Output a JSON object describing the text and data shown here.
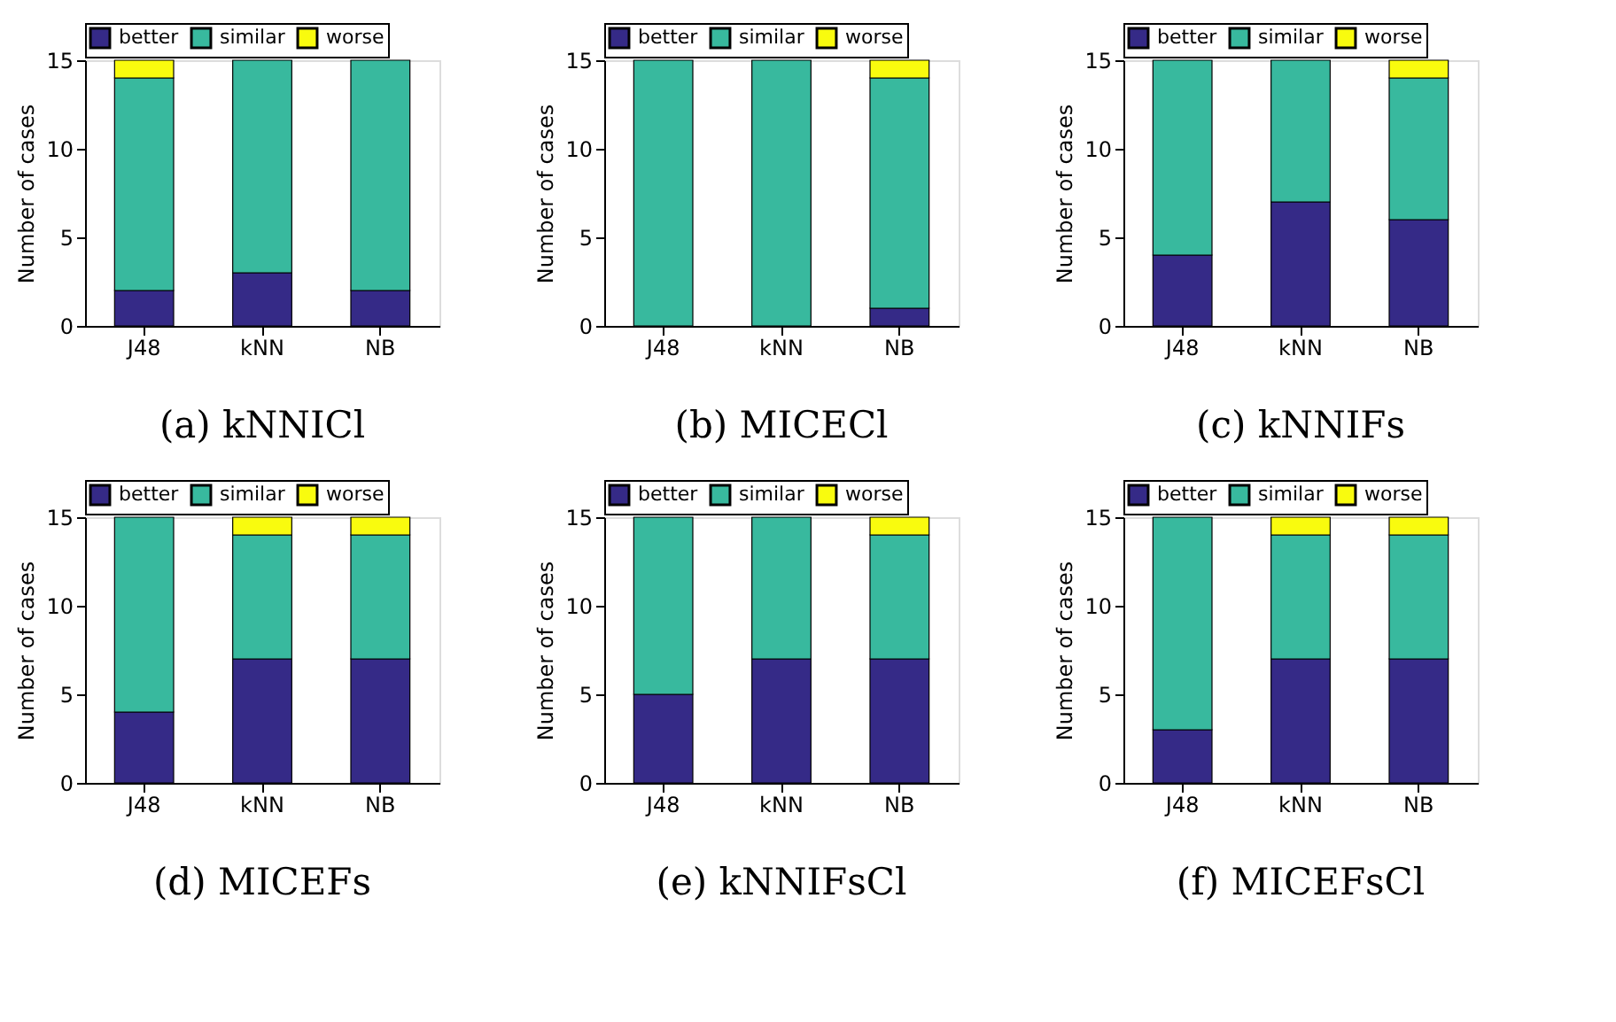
{
  "chart_data": [
    {
      "type": "bar",
      "title": "(a) kNNICl",
      "ylabel": "Number of cases",
      "categories": [
        "J48",
        "kNN",
        "NB"
      ],
      "stacked": true,
      "ylim": [
        0,
        15
      ],
      "yticks": [
        0,
        5,
        10,
        15
      ],
      "grid": false,
      "legend": "top",
      "series": [
        {
          "name": "better",
          "color": "#352a87",
          "values": [
            2,
            3,
            2
          ]
        },
        {
          "name": "similar",
          "color": "#38b99e",
          "values": [
            12,
            12,
            13
          ]
        },
        {
          "name": "worse",
          "color": "#f9fb0e",
          "values": [
            1,
            0,
            0
          ]
        }
      ]
    },
    {
      "type": "bar",
      "title": "(b) MICECl",
      "ylabel": "Number of cases",
      "categories": [
        "J48",
        "kNN",
        "NB"
      ],
      "stacked": true,
      "ylim": [
        0,
        15
      ],
      "yticks": [
        0,
        5,
        10,
        15
      ],
      "grid": false,
      "legend": "top",
      "series": [
        {
          "name": "better",
          "color": "#352a87",
          "values": [
            0,
            0,
            1
          ]
        },
        {
          "name": "similar",
          "color": "#38b99e",
          "values": [
            15,
            15,
            13
          ]
        },
        {
          "name": "worse",
          "color": "#f9fb0e",
          "values": [
            0,
            0,
            1
          ]
        }
      ]
    },
    {
      "type": "bar",
      "title": "(c) kNNIFs",
      "ylabel": "Number of cases",
      "categories": [
        "J48",
        "kNN",
        "NB"
      ],
      "stacked": true,
      "ylim": [
        0,
        15
      ],
      "yticks": [
        0,
        5,
        10,
        15
      ],
      "grid": false,
      "legend": "top",
      "series": [
        {
          "name": "better",
          "color": "#352a87",
          "values": [
            4,
            7,
            6
          ]
        },
        {
          "name": "similar",
          "color": "#38b99e",
          "values": [
            11,
            8,
            8
          ]
        },
        {
          "name": "worse",
          "color": "#f9fb0e",
          "values": [
            0,
            0,
            1
          ]
        }
      ]
    },
    {
      "type": "bar",
      "title": "(d) MICEFs",
      "ylabel": "Number of cases",
      "categories": [
        "J48",
        "kNN",
        "NB"
      ],
      "stacked": true,
      "ylim": [
        0,
        15
      ],
      "yticks": [
        0,
        5,
        10,
        15
      ],
      "grid": false,
      "legend": "top",
      "series": [
        {
          "name": "better",
          "color": "#352a87",
          "values": [
            4,
            7,
            7
          ]
        },
        {
          "name": "similar",
          "color": "#38b99e",
          "values": [
            11,
            7,
            7
          ]
        },
        {
          "name": "worse",
          "color": "#f9fb0e",
          "values": [
            0,
            1,
            1
          ]
        }
      ]
    },
    {
      "type": "bar",
      "title": "(e) kNNIFsCl",
      "ylabel": "Number of cases",
      "categories": [
        "J48",
        "kNN",
        "NB"
      ],
      "stacked": true,
      "ylim": [
        0,
        15
      ],
      "yticks": [
        0,
        5,
        10,
        15
      ],
      "grid": false,
      "legend": "top",
      "series": [
        {
          "name": "better",
          "color": "#352a87",
          "values": [
            5,
            7,
            7
          ]
        },
        {
          "name": "similar",
          "color": "#38b99e",
          "values": [
            10,
            8,
            7
          ]
        },
        {
          "name": "worse",
          "color": "#f9fb0e",
          "values": [
            0,
            0,
            1
          ]
        }
      ]
    },
    {
      "type": "bar",
      "title": "(f) MICEFsCl",
      "ylabel": "Number of cases",
      "categories": [
        "J48",
        "kNN",
        "NB"
      ],
      "stacked": true,
      "ylim": [
        0,
        15
      ],
      "yticks": [
        0,
        5,
        10,
        15
      ],
      "grid": false,
      "legend": "top",
      "series": [
        {
          "name": "better",
          "color": "#352a87",
          "values": [
            3,
            7,
            7
          ]
        },
        {
          "name": "similar",
          "color": "#38b99e",
          "values": [
            12,
            7,
            7
          ]
        },
        {
          "name": "worse",
          "color": "#f9fb0e",
          "values": [
            0,
            1,
            1
          ]
        }
      ]
    }
  ]
}
